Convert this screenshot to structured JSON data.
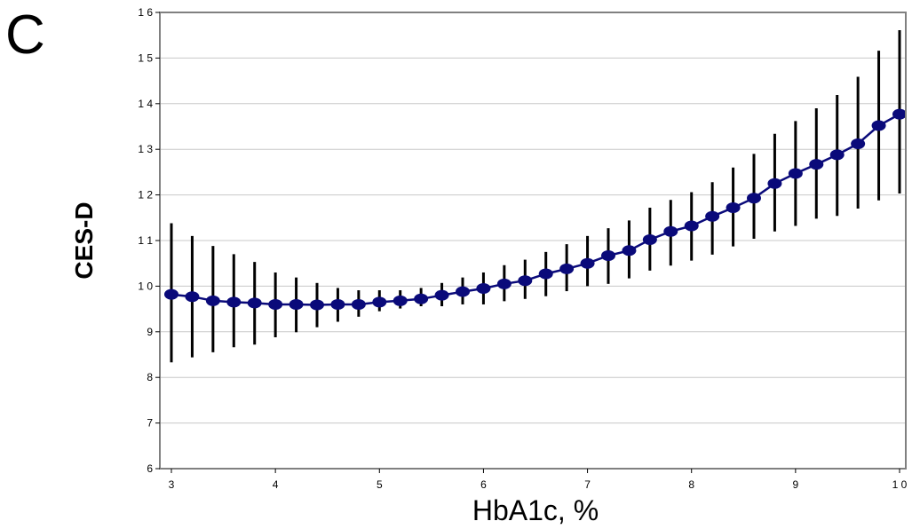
{
  "panel_label": "C",
  "chart_data": {
    "type": "line",
    "title": "",
    "xlabel": "HbA1c, %",
    "ylabel": "CES-D",
    "xlim": [
      3,
      10
    ],
    "ylim": [
      6,
      16
    ],
    "x_ticks": [
      "3",
      "4",
      "5",
      "6",
      "7",
      "8",
      "9",
      "1 0"
    ],
    "y_ticks": [
      "6",
      "7",
      "8",
      "9",
      "1 0",
      "1 1",
      "1 2",
      "1 3",
      "1 4",
      "1 5",
      "1 6"
    ],
    "grid": "horizontal",
    "colors": {
      "series": "#0a0a7a",
      "error_bars": "#000000",
      "grid": "#c8c8c8",
      "frame": "#808080"
    },
    "series": [
      {
        "x": [
          3.0,
          3.2,
          3.4,
          3.6,
          3.8,
          4.0,
          4.2,
          4.4,
          4.6,
          4.8,
          5.0,
          5.2,
          5.4,
          5.6,
          5.8,
          6.0,
          6.2,
          6.4,
          6.6,
          6.8,
          7.0,
          7.2,
          7.4,
          7.6,
          7.8,
          8.0,
          8.2,
          8.4,
          8.6,
          8.8,
          9.0,
          9.2,
          9.4,
          9.6,
          9.8,
          10.0
        ],
        "y": [
          9.82,
          9.77,
          9.68,
          9.65,
          9.63,
          9.6,
          9.6,
          9.59,
          9.6,
          9.6,
          9.65,
          9.68,
          9.72,
          9.8,
          9.88,
          9.95,
          10.05,
          10.12,
          10.27,
          10.38,
          10.5,
          10.67,
          10.78,
          11.02,
          11.2,
          11.32,
          11.53,
          11.72,
          11.93,
          12.25,
          12.47,
          12.67,
          12.88,
          13.12,
          13.52,
          13.77
        ],
        "y_low": [
          8.33,
          8.44,
          8.55,
          8.66,
          8.72,
          8.88,
          8.99,
          9.1,
          9.22,
          9.33,
          9.45,
          9.51,
          9.56,
          9.56,
          9.6,
          9.6,
          9.67,
          9.72,
          9.78,
          9.89,
          10.0,
          10.05,
          10.17,
          10.34,
          10.45,
          10.56,
          10.69,
          10.87,
          11.04,
          11.2,
          11.32,
          11.48,
          11.54,
          11.7,
          11.88,
          12.03
        ],
        "y_high": [
          11.38,
          11.1,
          10.88,
          10.7,
          10.53,
          10.3,
          10.19,
          10.07,
          9.96,
          9.91,
          9.91,
          9.91,
          9.96,
          10.07,
          10.19,
          10.3,
          10.46,
          10.58,
          10.75,
          10.92,
          11.1,
          11.27,
          11.44,
          11.72,
          11.89,
          12.06,
          12.28,
          12.6,
          12.9,
          13.34,
          13.62,
          13.9,
          14.19,
          14.59,
          15.16,
          15.61
        ]
      }
    ]
  }
}
